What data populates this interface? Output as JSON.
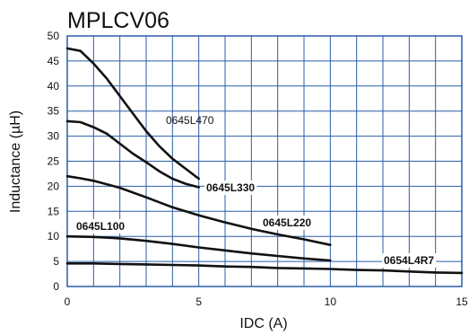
{
  "chart_data": {
    "type": "line",
    "title": "MPLCV06",
    "xlabel": "IDC (A)",
    "ylabel": "Inductance (µH)",
    "xlim": [
      0,
      15
    ],
    "ylim": [
      0,
      50
    ],
    "x_ticks": [
      0,
      5,
      10,
      15
    ],
    "y_ticks": [
      0,
      5,
      10,
      15,
      20,
      25,
      30,
      35,
      40,
      45,
      50
    ],
    "grid": true,
    "grid_color": "#2a5ea8",
    "line_color": "#111111",
    "series": [
      {
        "name": "0645L470",
        "x": [
          0,
          0.5,
          1,
          1.5,
          2,
          2.5,
          3,
          3.5,
          4,
          4.5,
          5
        ],
        "y": [
          47.5,
          47,
          44.5,
          41.5,
          38,
          34.5,
          31,
          28,
          25.5,
          23.5,
          21.5
        ]
      },
      {
        "name": "0645L330",
        "x": [
          0,
          0.5,
          1,
          1.5,
          2,
          2.5,
          3,
          3.5,
          4,
          4.5,
          5
        ],
        "y": [
          33,
          32.8,
          31.8,
          30.5,
          28.5,
          26.5,
          24.8,
          23,
          21.5,
          20.5,
          19.8
        ]
      },
      {
        "name": "0645L220",
        "x": [
          0,
          0.5,
          1,
          2,
          3,
          4,
          5,
          6,
          7,
          8,
          9,
          10
        ],
        "y": [
          22,
          21.6,
          21.1,
          19.7,
          17.8,
          15.8,
          14.2,
          12.8,
          11.5,
          10.4,
          9.4,
          8.3
        ]
      },
      {
        "name": "0645L100",
        "x": [
          0,
          1,
          2,
          3,
          4,
          5,
          6,
          7,
          8,
          9,
          10
        ],
        "y": [
          10,
          9.9,
          9.6,
          9.1,
          8.5,
          7.8,
          7.2,
          6.6,
          6.1,
          5.6,
          5.2
        ]
      },
      {
        "name": "0654L4R7",
        "x": [
          0,
          1,
          2,
          3,
          4,
          5,
          6,
          7,
          8,
          9,
          10,
          11,
          12,
          13,
          14,
          15
        ],
        "y": [
          4.6,
          4.6,
          4.5,
          4.4,
          4.3,
          4.2,
          4.0,
          3.9,
          3.7,
          3.6,
          3.5,
          3.3,
          3.2,
          3.0,
          2.8,
          2.7
        ]
      }
    ]
  }
}
